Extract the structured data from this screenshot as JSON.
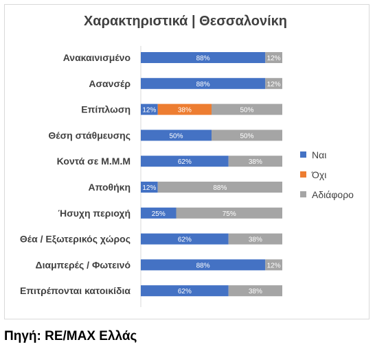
{
  "chart_data": {
    "type": "bar",
    "stacked": true,
    "orientation": "horizontal",
    "normalized_100": true,
    "title": "Χαρακτηριστικά | Θεσσαλονίκη",
    "categories": [
      "Ανακαινισμένο",
      "Ασανσέρ",
      "Επίπλωση",
      "Θέση στάθμευσης",
      "Κοντά σε Μ.Μ.Μ",
      "Αποθήκη",
      "Ήσυχη περιοχή",
      "Θέα / Εξωτερικός χώρος",
      "Διαμπερές / Φωτεινό",
      "Επιτρέπονται κατοικίδια"
    ],
    "series": [
      {
        "name": "Ναι",
        "color": "#4472c4",
        "values": [
          88,
          88,
          12,
          50,
          62,
          12,
          25,
          62,
          88,
          62
        ]
      },
      {
        "name": "Όχι",
        "color": "#ed7d31",
        "values": [
          0,
          0,
          38,
          0,
          0,
          0,
          0,
          0,
          0,
          0
        ]
      },
      {
        "name": "Αδιάφορο",
        "color": "#a5a5a5",
        "values": [
          12,
          12,
          50,
          50,
          38,
          88,
          75,
          38,
          12,
          38
        ]
      }
    ],
    "value_suffix": "%",
    "legend_position": "right",
    "grid": false
  },
  "footer": {
    "source": "Πηγή: RE/MAX Ελλάς"
  }
}
